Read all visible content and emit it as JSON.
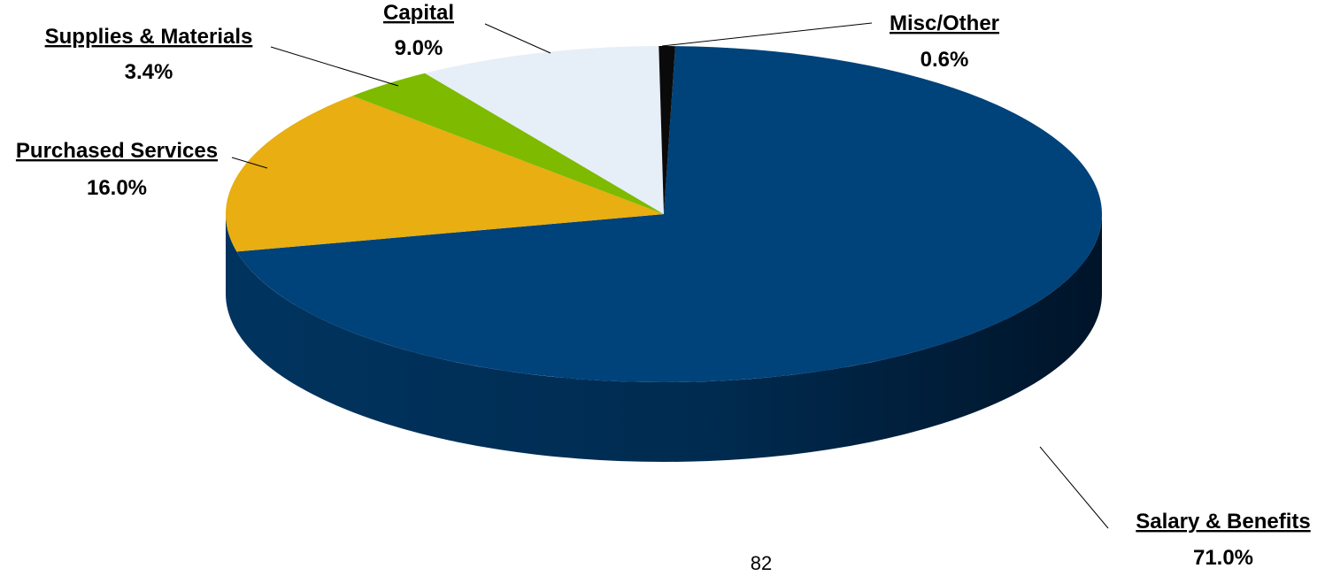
{
  "chart_data": {
    "type": "pie",
    "style": "3d",
    "slices": [
      {
        "label": "Salary & Benefits",
        "value": 71.0,
        "value_label": "71.0%",
        "color": "#00427A"
      },
      {
        "label": "Purchased Services",
        "value": 16.0,
        "value_label": "16.0%",
        "color": "#E8AE12"
      },
      {
        "label": "Supplies & Materials",
        "value": 3.4,
        "value_label": "3.4%",
        "color": "#7DBA00"
      },
      {
        "label": "Capital",
        "value": 9.0,
        "value_label": "9.0%",
        "color": "#E6EEF7"
      },
      {
        "label": "Misc/Other",
        "value": 0.6,
        "value_label": "0.6%",
        "color": "#0A0A0A"
      }
    ],
    "legend": "none",
    "data_labels": "outside with leader lines"
  },
  "page": {
    "number": "82"
  }
}
